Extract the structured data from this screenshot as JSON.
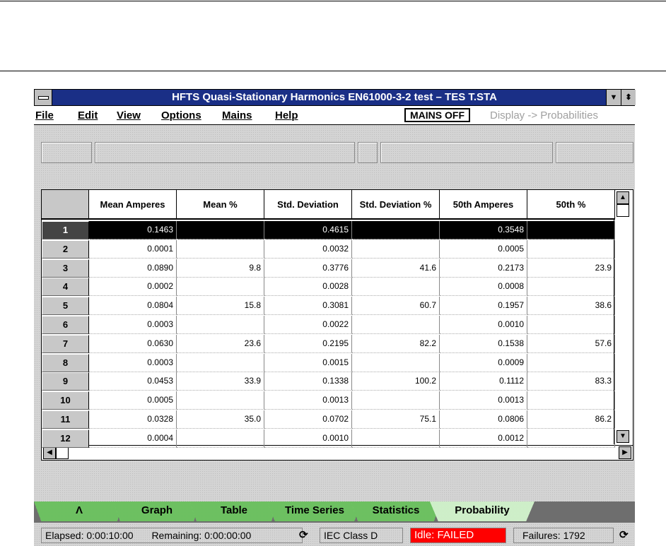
{
  "window": {
    "title": "HFTS Quasi-Stationary Harmonics EN61000-3-2 test – TES T.STA"
  },
  "menu": {
    "items": [
      "File",
      "Edit",
      "View",
      "Options",
      "Mains",
      "Help"
    ],
    "mains_status": "MAINS OFF",
    "display_mode": "Display -> Probabilities"
  },
  "table": {
    "columns": [
      "",
      "Mean Amperes",
      "Mean %",
      "Std. Deviation",
      "Std. Deviation %",
      "50th Amperes",
      "50th %"
    ],
    "rows": [
      [
        "1",
        "0.1463",
        "",
        "0.4615",
        "",
        "0.3548",
        ""
      ],
      [
        "2",
        "0.0001",
        "",
        "0.0032",
        "",
        "0.0005",
        ""
      ],
      [
        "3",
        "0.0890",
        "9.8",
        "0.3776",
        "41.6",
        "0.2173",
        "23.9"
      ],
      [
        "4",
        "0.0002",
        "",
        "0.0028",
        "",
        "0.0008",
        ""
      ],
      [
        "5",
        "0.0804",
        "15.8",
        "0.3081",
        "60.7",
        "0.1957",
        "38.6"
      ],
      [
        "6",
        "0.0003",
        "",
        "0.0022",
        "",
        "0.0010",
        ""
      ],
      [
        "7",
        "0.0630",
        "23.6",
        "0.2195",
        "82.2",
        "0.1538",
        "57.6"
      ],
      [
        "8",
        "0.0003",
        "",
        "0.0015",
        "",
        "0.0009",
        ""
      ],
      [
        "9",
        "0.0453",
        "33.9",
        "0.1338",
        "100.2",
        "0.1112",
        "83.3"
      ],
      [
        "10",
        "0.0005",
        "",
        "0.0013",
        "",
        "0.0013",
        ""
      ],
      [
        "11",
        "0.0328",
        "35.0",
        "0.0702",
        "75.1",
        "0.0806",
        "86.2"
      ],
      [
        "12",
        "0.0004",
        "",
        "0.0010",
        "",
        "0.0012",
        ""
      ]
    ],
    "selected_row": "1"
  },
  "tabs": [
    {
      "label": "Λ"
    },
    {
      "label": "Graph"
    },
    {
      "label": "Table"
    },
    {
      "label": "Time Series"
    },
    {
      "label": "Statistics"
    },
    {
      "label": "Probability",
      "active": true
    }
  ],
  "status": {
    "elapsed": "Elapsed: 0:00:10:00",
    "remaining": "Remaining: 0:00:00:00",
    "class": "IEC Class D",
    "state": "Idle: FAILED",
    "failures": "Failures: 1792"
  },
  "colors": {
    "title_bar": "#1a2f86",
    "tab_green": "#7fcf6f",
    "failed": "#ff0000"
  }
}
